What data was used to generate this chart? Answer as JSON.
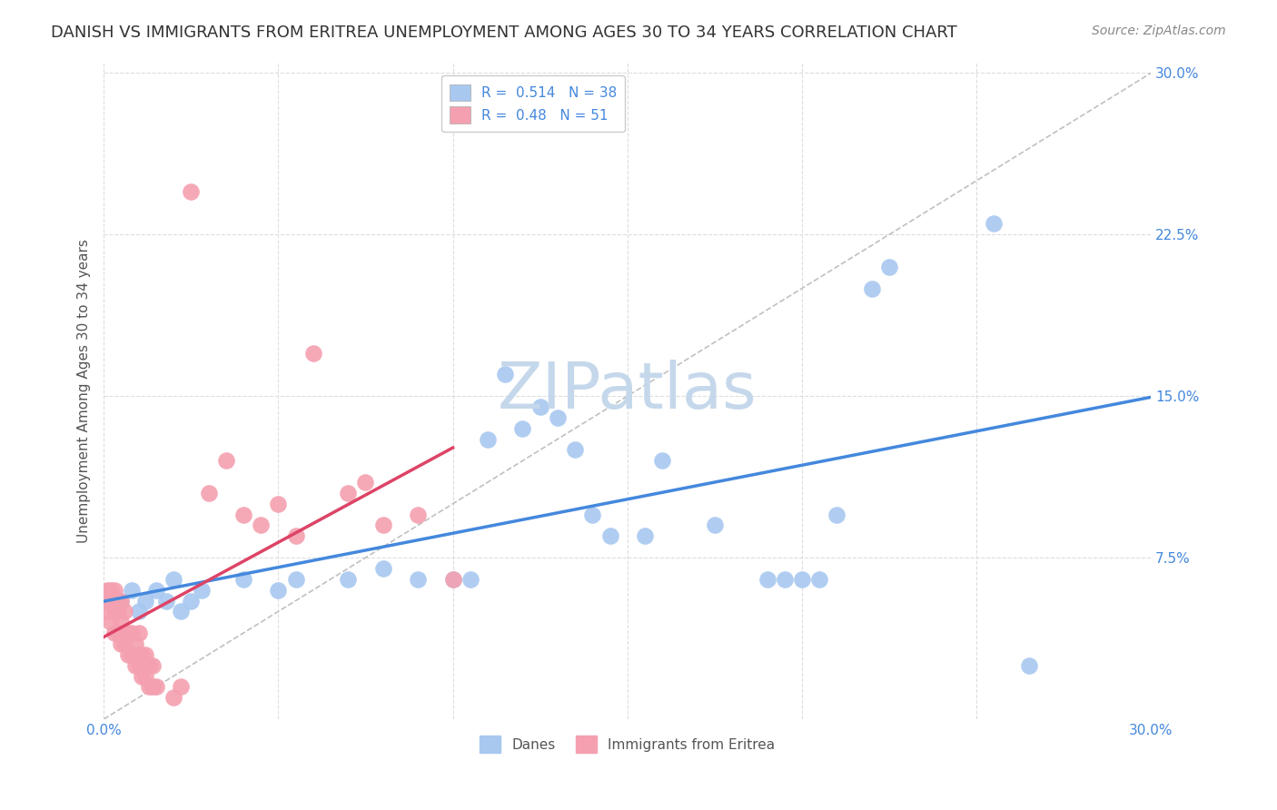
{
  "title": "DANISH VS IMMIGRANTS FROM ERITREA UNEMPLOYMENT AMONG AGES 30 TO 34 YEARS CORRELATION CHART",
  "source": "Source: ZipAtlas.com",
  "ylabel": "Unemployment Among Ages 30 to 34 years",
  "xlim": [
    0,
    0.3
  ],
  "ylim": [
    0,
    0.305
  ],
  "x_ticks": [
    0.0,
    0.05,
    0.1,
    0.15,
    0.2,
    0.25,
    0.3
  ],
  "y_ticks": [
    0.0,
    0.075,
    0.15,
    0.225,
    0.3
  ],
  "danes_color": "#a8c8f0",
  "eritrea_color": "#f4a0b0",
  "danes_line_color": "#4488dd",
  "eritrea_line_color": "#dd4466",
  "danes_R": 0.514,
  "danes_N": 38,
  "eritrea_R": 0.48,
  "eritrea_N": 51,
  "danes_scatter": [
    [
      0.005,
      0.055
    ],
    [
      0.008,
      0.06
    ],
    [
      0.01,
      0.05
    ],
    [
      0.012,
      0.055
    ],
    [
      0.015,
      0.06
    ],
    [
      0.018,
      0.055
    ],
    [
      0.02,
      0.065
    ],
    [
      0.022,
      0.05
    ],
    [
      0.025,
      0.055
    ],
    [
      0.028,
      0.06
    ],
    [
      0.04,
      0.065
    ],
    [
      0.05,
      0.06
    ],
    [
      0.055,
      0.065
    ],
    [
      0.07,
      0.065
    ],
    [
      0.08,
      0.07
    ],
    [
      0.09,
      0.065
    ],
    [
      0.1,
      0.065
    ],
    [
      0.105,
      0.065
    ],
    [
      0.11,
      0.13
    ],
    [
      0.115,
      0.16
    ],
    [
      0.12,
      0.135
    ],
    [
      0.125,
      0.145
    ],
    [
      0.13,
      0.14
    ],
    [
      0.135,
      0.125
    ],
    [
      0.14,
      0.095
    ],
    [
      0.145,
      0.085
    ],
    [
      0.155,
      0.085
    ],
    [
      0.16,
      0.12
    ],
    [
      0.175,
      0.09
    ],
    [
      0.19,
      0.065
    ],
    [
      0.195,
      0.065
    ],
    [
      0.2,
      0.065
    ],
    [
      0.205,
      0.065
    ],
    [
      0.21,
      0.095
    ],
    [
      0.22,
      0.2
    ],
    [
      0.225,
      0.21
    ],
    [
      0.255,
      0.23
    ],
    [
      0.265,
      0.025
    ]
  ],
  "eritrea_scatter": [
    [
      0.0,
      0.055
    ],
    [
      0.001,
      0.05
    ],
    [
      0.001,
      0.06
    ],
    [
      0.002,
      0.045
    ],
    [
      0.002,
      0.055
    ],
    [
      0.002,
      0.06
    ],
    [
      0.003,
      0.04
    ],
    [
      0.003,
      0.05
    ],
    [
      0.003,
      0.06
    ],
    [
      0.004,
      0.04
    ],
    [
      0.004,
      0.05
    ],
    [
      0.004,
      0.055
    ],
    [
      0.005,
      0.035
    ],
    [
      0.005,
      0.045
    ],
    [
      0.005,
      0.055
    ],
    [
      0.006,
      0.035
    ],
    [
      0.006,
      0.04
    ],
    [
      0.006,
      0.05
    ],
    [
      0.007,
      0.03
    ],
    [
      0.007,
      0.04
    ],
    [
      0.008,
      0.03
    ],
    [
      0.008,
      0.04
    ],
    [
      0.009,
      0.025
    ],
    [
      0.009,
      0.035
    ],
    [
      0.01,
      0.025
    ],
    [
      0.01,
      0.03
    ],
    [
      0.01,
      0.04
    ],
    [
      0.011,
      0.02
    ],
    [
      0.011,
      0.03
    ],
    [
      0.012,
      0.02
    ],
    [
      0.012,
      0.03
    ],
    [
      0.013,
      0.015
    ],
    [
      0.013,
      0.025
    ],
    [
      0.014,
      0.015
    ],
    [
      0.014,
      0.025
    ],
    [
      0.015,
      0.015
    ],
    [
      0.02,
      0.01
    ],
    [
      0.022,
      0.015
    ],
    [
      0.025,
      0.245
    ],
    [
      0.03,
      0.105
    ],
    [
      0.035,
      0.12
    ],
    [
      0.04,
      0.095
    ],
    [
      0.045,
      0.09
    ],
    [
      0.05,
      0.1
    ],
    [
      0.055,
      0.085
    ],
    [
      0.06,
      0.17
    ],
    [
      0.07,
      0.105
    ],
    [
      0.075,
      0.11
    ],
    [
      0.08,
      0.09
    ],
    [
      0.09,
      0.095
    ],
    [
      0.1,
      0.065
    ]
  ],
  "watermark": "ZIPatlas",
  "watermark_color": "#c5d8eb",
  "background_color": "#ffffff",
  "grid_color": "#dddddd",
  "legend_labels": [
    "Danes",
    "Immigrants from Eritrea"
  ],
  "title_fontsize": 13,
  "axis_label_fontsize": 11,
  "tick_fontsize": 11,
  "legend_fontsize": 11,
  "source_fontsize": 10
}
